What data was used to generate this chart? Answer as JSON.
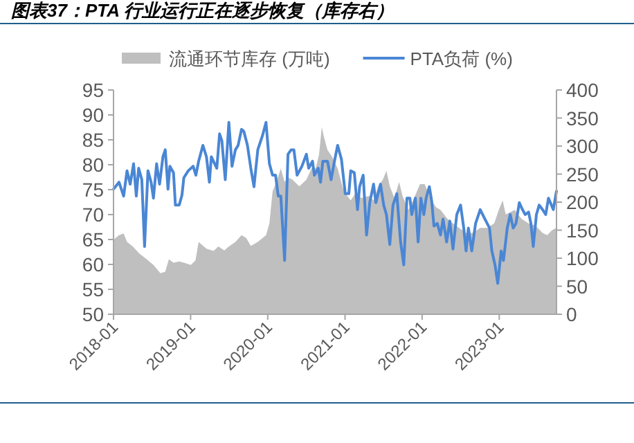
{
  "chart_data": {
    "type": "line",
    "title": "图表37：PTA 行业运行正在逐步恢复（库存右）",
    "legend": "top",
    "grid": false,
    "xlim": [
      "2018-01-01",
      "2023-09-29"
    ],
    "xticks": [
      "2018-01",
      "2019-01",
      "2020-01",
      "2021-01",
      "2022-01",
      "2023-01"
    ],
    "ylim": [
      50,
      95
    ],
    "yticks": [
      50,
      55,
      60,
      65,
      70,
      75,
      80,
      85,
      90,
      95
    ],
    "y2lim": [
      0,
      400
    ],
    "y2ticks": [
      0,
      50,
      100,
      150,
      200,
      250,
      300,
      350,
      400
    ],
    "series": [
      {
        "name": "流通环节库存 (万吨)",
        "type": "area",
        "axis": "y2",
        "color": "#bfbfbf",
        "x": [
          "2018-01-01",
          "2018-01-27",
          "2018-02-18",
          "2018-03-06",
          "2018-04-02",
          "2018-05-04",
          "2018-06-07",
          "2018-07-09",
          "2018-08-11",
          "2018-09-03",
          "2018-09-20",
          "2018-10-12",
          "2018-11-08",
          "2018-11-30",
          "2019-01-02",
          "2019-01-24",
          "2019-02-08",
          "2019-02-20",
          "2019-03-17",
          "2019-04-20",
          "2019-05-12",
          "2019-06-10",
          "2019-06-25",
          "2019-08-01",
          "2019-08-30",
          "2019-09-21",
          "2019-10-13",
          "2019-11-15",
          "2019-12-24",
          "2020-01-09",
          "2020-01-24",
          "2020-02-11",
          "2020-03-03",
          "2020-03-21",
          "2020-04-06",
          "2020-04-27",
          "2020-05-30",
          "2020-07-02",
          "2020-07-31",
          "2020-08-15",
          "2020-08-31",
          "2020-09-13",
          "2020-09-22",
          "2020-10-10",
          "2020-11-01",
          "2020-11-27",
          "2020-12-26",
          "2021-01-28",
          "2021-02-18",
          "2021-03-22",
          "2021-04-24",
          "2021-05-16",
          "2021-06-07",
          "2021-06-29",
          "2021-07-16",
          "2021-08-01",
          "2021-08-23",
          "2021-09-14",
          "2021-09-30",
          "2021-10-28",
          "2021-11-19",
          "2021-12-22",
          "2022-01-13",
          "2022-02-09",
          "2022-03-07",
          "2022-03-29",
          "2022-05-01",
          "2022-05-27",
          "2022-06-25",
          "2022-07-28",
          "2022-08-31",
          "2022-10-03",
          "2022-11-05",
          "2022-12-08",
          "2022-12-30",
          "2023-01-17",
          "2023-02-01",
          "2023-02-22",
          "2023-03-15",
          "2023-04-17",
          "2023-05-20",
          "2023-06-22",
          "2023-07-25",
          "2023-08-16",
          "2023-09-08",
          "2023-09-29"
        ],
        "values": [
          133,
          141,
          144,
          129,
          121,
          108,
          98,
          88,
          73,
          76,
          98,
          92,
          94,
          92,
          88,
          96,
          129,
          125,
          117,
          113,
          121,
          114,
          119,
          129,
          141,
          136,
          122,
          129,
          141,
          162,
          219,
          236,
          260,
          236,
          244,
          240,
          228,
          240,
          264,
          260,
          285,
          334,
          318,
          293,
          281,
          260,
          219,
          203,
          215,
          207,
          211,
          203,
          228,
          240,
          256,
          228,
          207,
          236,
          211,
          186,
          203,
          232,
          232,
          207,
          191,
          186,
          170,
          162,
          154,
          145,
          145,
          154,
          154,
          162,
          186,
          203,
          178,
          182,
          186,
          170,
          162,
          158,
          145,
          141,
          150,
          154
        ]
      },
      {
        "name": "PTA负荷 (%)",
        "type": "line",
        "axis": "y",
        "color": "#4a86d4",
        "x": [
          "2018-01-01",
          "2018-01-27",
          "2018-02-18",
          "2018-03-06",
          "2018-03-21",
          "2018-04-06",
          "2018-04-19",
          "2018-04-30",
          "2018-05-15",
          "2018-05-28",
          "2018-06-13",
          "2018-06-28",
          "2018-07-09",
          "2018-07-24",
          "2018-08-07",
          "2018-08-23",
          "2018-09-03",
          "2018-09-16",
          "2018-09-25",
          "2018-10-12",
          "2018-10-21",
          "2018-11-08",
          "2018-11-21",
          "2018-11-30",
          "2018-12-21",
          "2019-01-13",
          "2019-01-26",
          "2019-02-08",
          "2019-02-28",
          "2019-03-17",
          "2019-03-31",
          "2019-04-09",
          "2019-05-05",
          "2019-05-18",
          "2019-05-29",
          "2019-06-14",
          "2019-07-01",
          "2019-07-16",
          "2019-08-01",
          "2019-08-14",
          "2019-08-30",
          "2019-09-10",
          "2019-09-27",
          "2019-10-13",
          "2019-10-28",
          "2019-11-15",
          "2019-12-07",
          "2019-12-24",
          "2020-01-09",
          "2020-01-24",
          "2020-02-07",
          "2020-02-20",
          "2020-03-03",
          "2020-03-21",
          "2020-04-06",
          "2020-04-21",
          "2020-05-04",
          "2020-05-19",
          "2020-06-11",
          "2020-07-02",
          "2020-07-13",
          "2020-07-31",
          "2020-08-09",
          "2020-08-27",
          "2020-09-07",
          "2020-09-18",
          "2020-10-10",
          "2020-10-27",
          "2020-11-12",
          "2020-11-27",
          "2020-12-15",
          "2021-01-02",
          "2021-01-19",
          "2021-01-28",
          "2021-02-14",
          "2021-03-01",
          "2021-03-11",
          "2021-03-28",
          "2021-04-13",
          "2021-04-28",
          "2021-05-16",
          "2021-05-27",
          "2021-06-18",
          "2021-07-03",
          "2021-07-16",
          "2021-08-01",
          "2021-08-16",
          "2021-09-03",
          "2021-09-21",
          "2021-10-06",
          "2021-10-21",
          "2021-11-04",
          "2021-11-13",
          "2021-11-30",
          "2021-12-13",
          "2021-12-26",
          "2022-01-09",
          "2022-01-20",
          "2022-02-04",
          "2022-02-15",
          "2022-02-26",
          "2022-03-14",
          "2022-03-29",
          "2022-04-10",
          "2022-04-27",
          "2022-05-12",
          "2022-05-27",
          "2022-06-14",
          "2022-07-02",
          "2022-07-17",
          "2022-07-28",
          "2022-08-08",
          "2022-08-24",
          "2022-09-11",
          "2022-10-03",
          "2022-10-25",
          "2022-11-16",
          "2022-11-27",
          "2022-12-12",
          "2022-12-25",
          "2023-01-10",
          "2023-01-21",
          "2023-02-08",
          "2023-02-22",
          "2023-03-08",
          "2023-03-21",
          "2023-04-06",
          "2023-04-21",
          "2023-05-04",
          "2023-05-20",
          "2023-05-31",
          "2023-06-11",
          "2023-06-26",
          "2023-07-09",
          "2023-07-25",
          "2023-08-09",
          "2023-08-22",
          "2023-09-14",
          "2023-09-29"
        ],
        "values": [
          75.1,
          76.5,
          73.7,
          78.8,
          76.1,
          80.2,
          73.7,
          79.3,
          77.0,
          63.6,
          78.8,
          76.5,
          73.3,
          80.2,
          76.1,
          81.6,
          83.0,
          75.1,
          79.7,
          78.4,
          71.9,
          71.9,
          73.9,
          77.4,
          78.8,
          79.7,
          77.9,
          80.7,
          83.9,
          81.6,
          76.5,
          81.6,
          79.3,
          86.2,
          84.8,
          77.0,
          88.5,
          79.7,
          83.0,
          83.9,
          87.1,
          86.7,
          83.9,
          79.3,
          75.6,
          83.0,
          85.8,
          88.5,
          80.2,
          77.9,
          77.9,
          73.7,
          73.7,
          60.8,
          82.1,
          83.0,
          83.0,
          77.9,
          79.7,
          82.1,
          79.3,
          80.7,
          77.9,
          79.3,
          76.5,
          80.7,
          80.7,
          77.0,
          80.7,
          83.9,
          81.1,
          74.2,
          74.2,
          78.8,
          78.4,
          71.0,
          75.6,
          77.9,
          65.9,
          72.4,
          76.1,
          72.4,
          76.1,
          71.9,
          70.0,
          64.0,
          71.9,
          74.2,
          64.5,
          59.9,
          73.3,
          73.3,
          70.0,
          73.3,
          64.5,
          73.3,
          70.0,
          73.3,
          75.6,
          72.8,
          67.7,
          68.2,
          65.9,
          69.1,
          64.5,
          68.7,
          63.1,
          70.0,
          71.9,
          67.3,
          62.7,
          67.3,
          62.7,
          68.2,
          71.0,
          69.1,
          67.3,
          62.7,
          59.9,
          56.2,
          62.7,
          60.8,
          67.3,
          70.0,
          67.3,
          68.2,
          72.4,
          71.0,
          70.0,
          70.5,
          68.2,
          63.6,
          70.0,
          71.9,
          71.0,
          70.0,
          73.3,
          71.0,
          74.7
        ]
      }
    ]
  }
}
